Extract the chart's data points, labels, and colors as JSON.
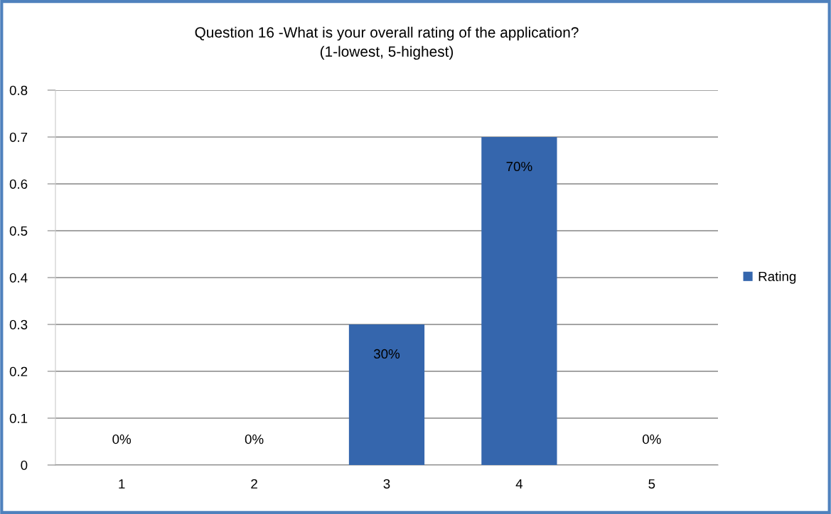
{
  "chart_data": {
    "type": "bar",
    "title": "Question 16 -What is your overall rating of the application?\n(1-lowest, 5-highest)",
    "categories": [
      "1",
      "2",
      "3",
      "4",
      "5"
    ],
    "series": [
      {
        "name": "Rating",
        "color": "#3566ad",
        "values": [
          0,
          0,
          0.3,
          0.7,
          0
        ],
        "value_labels": [
          "0%",
          "0%",
          "30%",
          "70%",
          "0%"
        ]
      }
    ],
    "ylim": [
      0,
      0.8
    ],
    "yticks": [
      0,
      0.1,
      0.2,
      0.3,
      0.4,
      0.5,
      0.6,
      0.7,
      0.8
    ],
    "grid": "y",
    "legend": "right"
  }
}
